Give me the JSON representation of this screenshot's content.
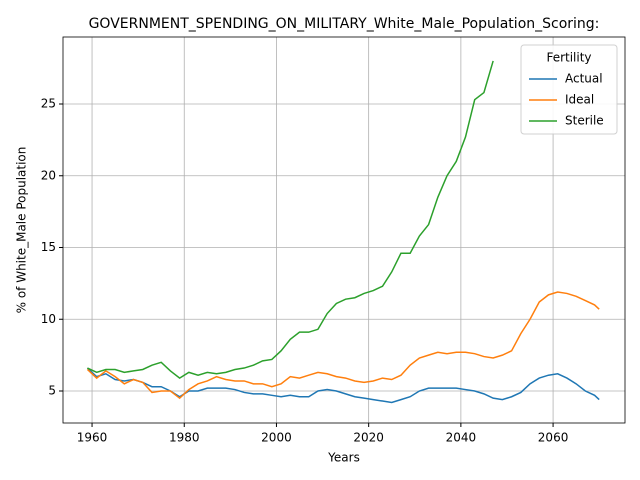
{
  "chart_data": {
    "type": "line",
    "title": "GOVERNMENT_SPENDING_ON_MILITARY_White_Male_Population_Scoring:",
    "xlabel": "Years",
    "ylabel": "% of White_Male Population",
    "x": [
      1959,
      1961,
      1963,
      1965,
      1967,
      1969,
      1971,
      1973,
      1975,
      1977,
      1979,
      1981,
      1983,
      1985,
      1987,
      1989,
      1991,
      1993,
      1995,
      1997,
      1999,
      2001,
      2003,
      2005,
      2007,
      2009,
      2011,
      2013,
      2015,
      2017,
      2019,
      2021,
      2023,
      2025,
      2027,
      2029,
      2031,
      2033,
      2035,
      2037,
      2039,
      2041,
      2043,
      2045,
      2047,
      2049,
      2051,
      2053,
      2055,
      2057,
      2059,
      2061,
      2063,
      2065,
      2067,
      2069,
      2070
    ],
    "series": [
      {
        "name": "Actual",
        "color": "#1f77b4",
        "values": [
          6.6,
          6.0,
          6.2,
          5.8,
          5.7,
          5.8,
          5.6,
          5.3,
          5.3,
          5.0,
          4.6,
          5.0,
          5.0,
          5.2,
          5.2,
          5.2,
          5.1,
          4.9,
          4.8,
          4.8,
          4.7,
          4.6,
          4.7,
          4.6,
          4.6,
          5.0,
          5.1,
          5.0,
          4.8,
          4.6,
          4.5,
          4.4,
          4.3,
          4.2,
          4.4,
          4.6,
          5.0,
          5.2,
          5.2,
          5.2,
          5.2,
          5.1,
          5.0,
          4.8,
          4.5,
          4.4,
          4.6,
          4.9,
          5.5,
          5.9,
          6.1,
          6.2,
          5.9,
          5.5,
          5.0,
          4.7,
          4.4
        ]
      },
      {
        "name": "Ideal",
        "color": "#ff7f0e",
        "values": [
          6.5,
          5.9,
          6.4,
          6.0,
          5.5,
          5.8,
          5.6,
          4.9,
          5.0,
          5.0,
          4.5,
          5.1,
          5.5,
          5.7,
          6.0,
          5.8,
          5.7,
          5.7,
          5.5,
          5.5,
          5.3,
          5.5,
          6.0,
          5.9,
          6.1,
          6.3,
          6.2,
          6.0,
          5.9,
          5.7,
          5.6,
          5.7,
          5.9,
          5.8,
          6.1,
          6.8,
          7.3,
          7.5,
          7.7,
          7.6,
          7.7,
          7.7,
          7.6,
          7.4,
          7.3,
          7.5,
          7.8,
          9.0,
          10.0,
          11.2,
          11.7,
          11.9,
          11.8,
          11.6,
          11.3,
          11.0,
          10.7
        ]
      },
      {
        "name": "Sterile",
        "color": "#2ca02c",
        "values": [
          6.6,
          6.3,
          6.5,
          6.5,
          6.3,
          6.4,
          6.5,
          6.8,
          7.0,
          6.4,
          5.9,
          6.3,
          6.1,
          6.3,
          6.2,
          6.3,
          6.5,
          6.6,
          6.8,
          7.1,
          7.2,
          7.8,
          8.6,
          9.1,
          9.1,
          9.3,
          10.4,
          11.1,
          11.4,
          11.5,
          11.8,
          12.0,
          12.3,
          13.3,
          14.6,
          14.6,
          15.8,
          16.6,
          18.5,
          20.0,
          21.0,
          22.7,
          25.3,
          25.8,
          28.0,
          null,
          null,
          null,
          null,
          null,
          null,
          null,
          null,
          null,
          null,
          null,
          null
        ]
      }
    ],
    "xlim": [
      1953.7,
      2075.6
    ],
    "ylim": [
      2.77,
      29.67
    ],
    "xticks": [
      1960,
      1980,
      2000,
      2020,
      2040,
      2060
    ],
    "yticks": [
      5,
      10,
      15,
      20,
      25
    ],
    "grid": true,
    "legend_title": "Fertility",
    "legend_position": "upper right"
  }
}
